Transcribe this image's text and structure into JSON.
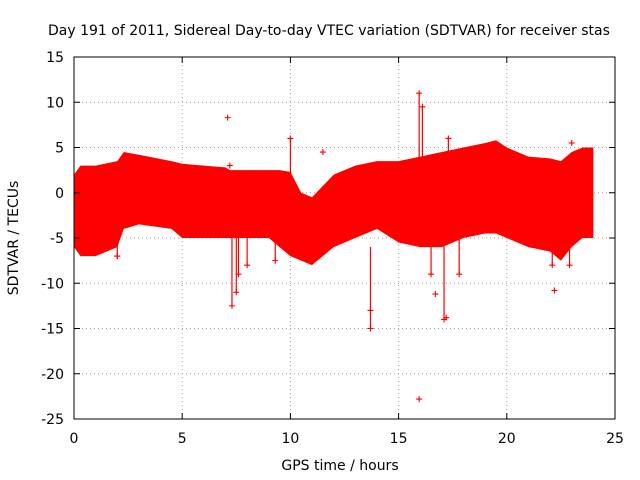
{
  "chart_data": {
    "type": "scatter",
    "title": "Day 191 of 2011, Sidereal Day-to-day VTEC variation (SDTVAR) for receiver stas",
    "xlabel": "GPS time / hours",
    "ylabel": "SDTVAR / TECUs",
    "xlim": [
      0,
      25
    ],
    "ylim": [
      -25,
      15
    ],
    "x_ticks": [
      0,
      5,
      10,
      15,
      20,
      25
    ],
    "x_tick_labels": [
      "0",
      "5",
      "10",
      "15",
      "20",
      "25"
    ],
    "y_ticks": [
      -25,
      -20,
      -15,
      -10,
      -5,
      0,
      5,
      10,
      15
    ],
    "y_tick_labels": [
      "-25",
      "-20",
      "-15",
      "-10",
      "-5",
      "0",
      "5",
      "10",
      "15"
    ],
    "grid": true,
    "marker": "+",
    "series_color": "#ff0000",
    "envelope": {
      "x": [
        0,
        0.3,
        1,
        2,
        2.3,
        3,
        4.5,
        5,
        6,
        7,
        7.2,
        8,
        9,
        9.5,
        10,
        10.5,
        11,
        12,
        13,
        14,
        15,
        16,
        17,
        18,
        19,
        19.5,
        20,
        21,
        22,
        22.5,
        23,
        23.5,
        24
      ],
      "upper": [
        2,
        3,
        3,
        3.5,
        4.5,
        4.2,
        3.5,
        3.2,
        3,
        2.8,
        2.5,
        2.5,
        2.5,
        2.5,
        2.3,
        0,
        -0.5,
        2,
        3,
        3.5,
        3.5,
        4,
        4.5,
        5,
        5.5,
        5.8,
        5,
        4,
        3.8,
        3.5,
        4.5,
        5,
        5
      ],
      "lower": [
        -6,
        -7,
        -7,
        -6,
        -4,
        -3.5,
        -4,
        -5,
        -5,
        -5,
        -5,
        -5,
        -5,
        -6,
        -7,
        -7.5,
        -8,
        -6,
        -5,
        -4,
        -5.5,
        -6,
        -6,
        -5,
        -4.5,
        -4.5,
        -5,
        -6,
        -6.5,
        -7.5,
        -6,
        -5,
        -5
      ]
    },
    "spikes": [
      {
        "x": 2.0,
        "y0": -3,
        "y1": -7
      },
      {
        "x": 7.3,
        "y0": -4,
        "y1": -12.5
      },
      {
        "x": 7.5,
        "y0": -4,
        "y1": -11
      },
      {
        "x": 7.6,
        "y0": -5,
        "y1": -9
      },
      {
        "x": 8.0,
        "y0": -5,
        "y1": -8
      },
      {
        "x": 9.3,
        "y0": -5,
        "y1": -7.5
      },
      {
        "x": 10.0,
        "y0": 2,
        "y1": 6
      },
      {
        "x": 13.7,
        "y0": -6,
        "y1": -15
      },
      {
        "x": 15.95,
        "y0": 3,
        "y1": 11
      },
      {
        "x": 16.1,
        "y0": 3,
        "y1": 9.5
      },
      {
        "x": 16.5,
        "y0": -6,
        "y1": -9
      },
      {
        "x": 17.1,
        "y0": -5,
        "y1": -14
      },
      {
        "x": 17.3,
        "y0": 3,
        "y1": 6
      },
      {
        "x": 17.8,
        "y0": -5,
        "y1": -9
      },
      {
        "x": 22.1,
        "y0": -5,
        "y1": -8
      },
      {
        "x": 22.9,
        "y0": -5,
        "y1": -8
      }
    ],
    "points": [
      {
        "x": 7.1,
        "y": 8.3
      },
      {
        "x": 15.95,
        "y": -22.8
      },
      {
        "x": 16.7,
        "y": -11.2
      },
      {
        "x": 22.2,
        "y": -10.8
      },
      {
        "x": 2.0,
        "y": -7
      },
      {
        "x": 7.2,
        "y": 3
      },
      {
        "x": 11.5,
        "y": 4.5
      },
      {
        "x": 13.7,
        "y": -13
      },
      {
        "x": 17.2,
        "y": -13.8
      },
      {
        "x": 23.0,
        "y": 5.5
      }
    ]
  }
}
